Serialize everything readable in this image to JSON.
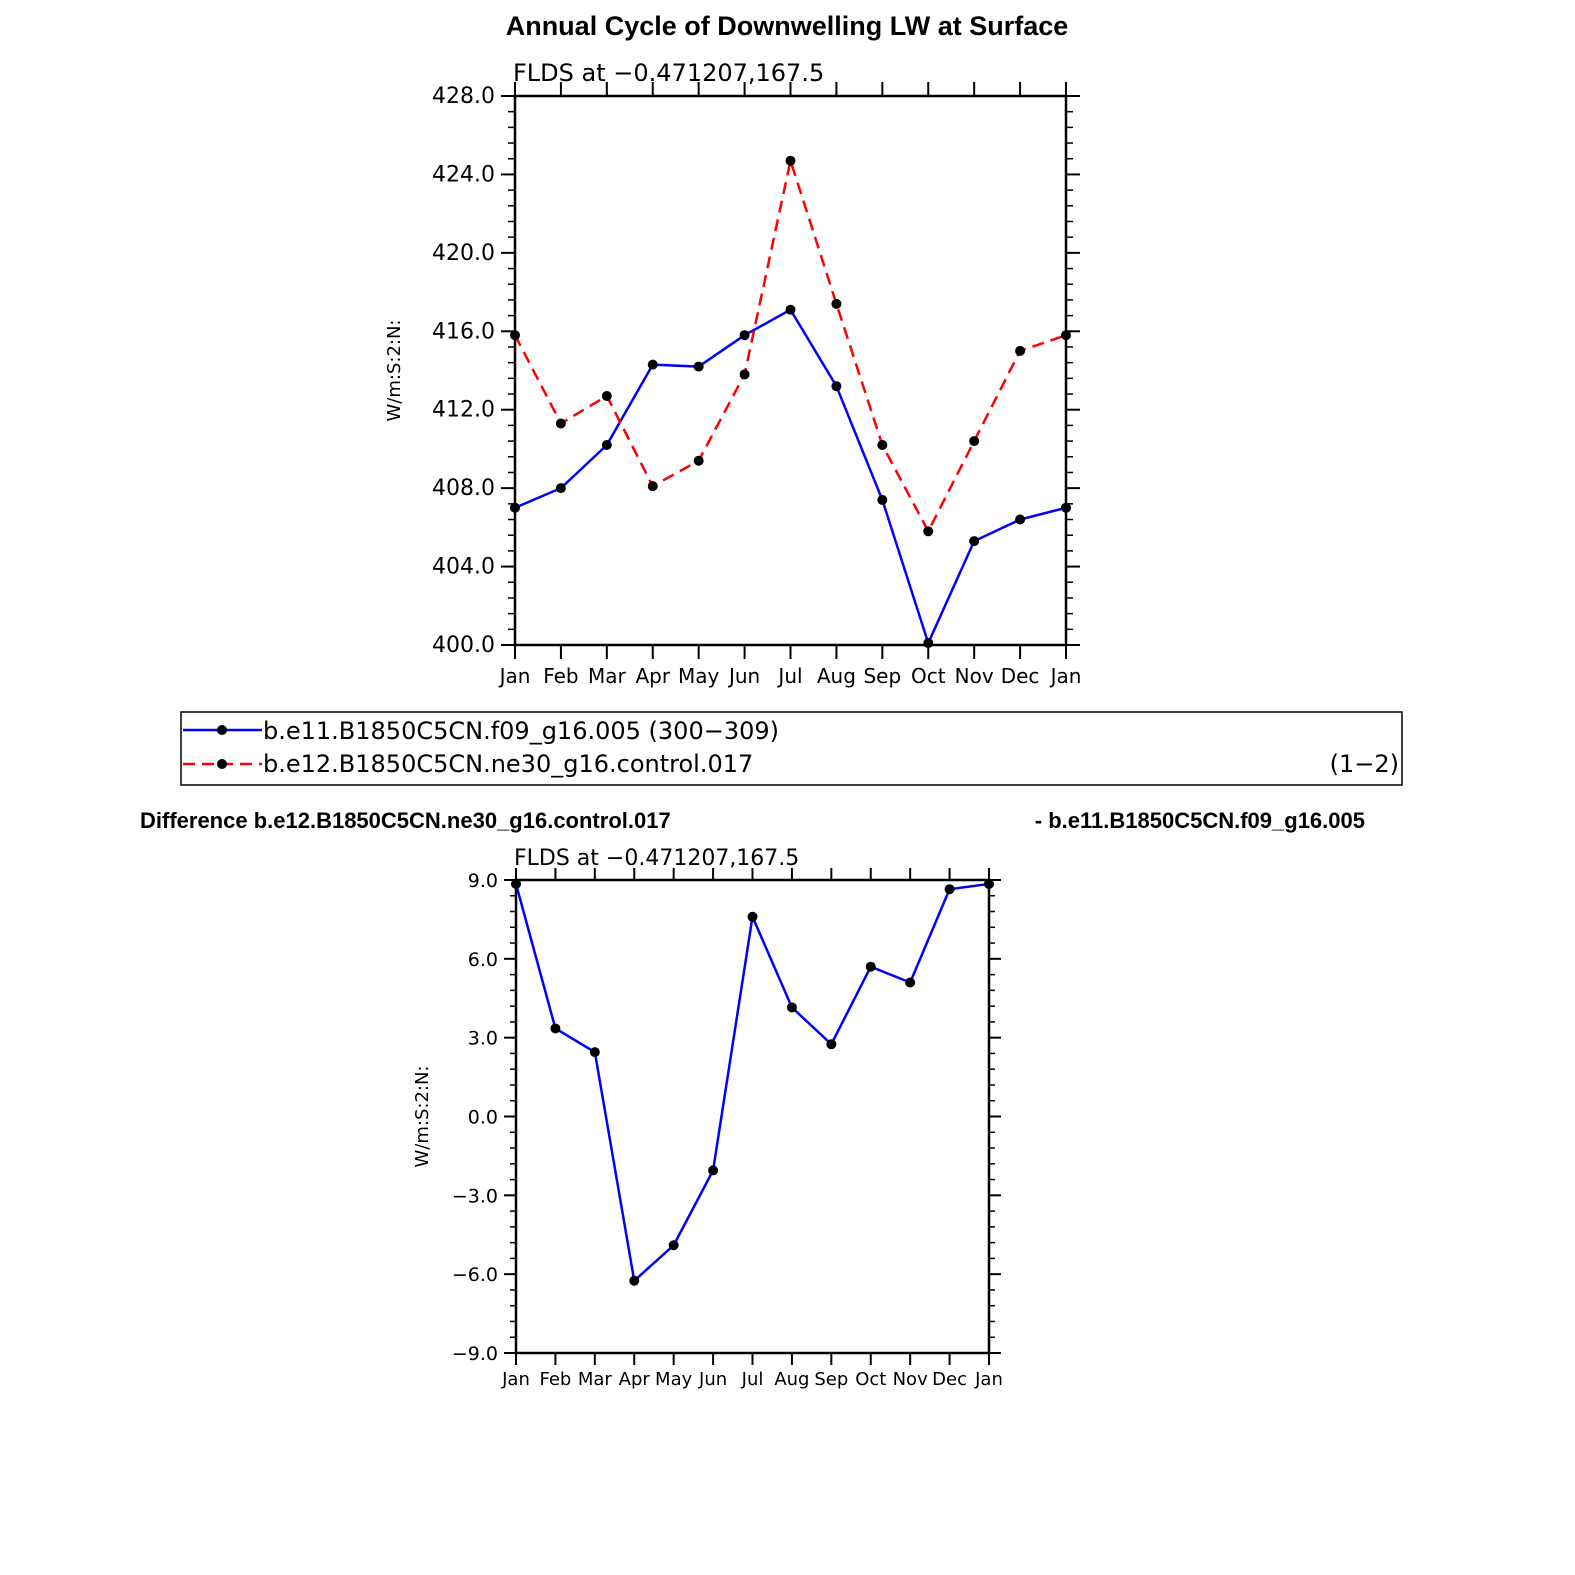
{
  "figure": {
    "title": "Annual Cycle of Downwelling LW at Surface",
    "difference_title_left": "Difference b.e12.B1850C5CN.ne30_g16.control.017",
    "difference_title_right": "- b.e11.B1850C5CN.f09_g16.005"
  },
  "legend": {
    "entries": [
      {
        "label": "b.e11.B1850C5CN.f09_g16.005 (300−309)",
        "color": "#0000ff",
        "dashed": false
      },
      {
        "label": "b.e12.B1850C5CN.ne30_g16.control.017",
        "color": "#ff0000",
        "dashed": true
      }
    ],
    "range_note": "(1−2)"
  },
  "chart_data": [
    {
      "type": "line",
      "title": "FLDS at −0.471207,167.5",
      "ylabel": "W/m:S:2:N:",
      "xlabel": "",
      "categories": [
        "Jan",
        "Feb",
        "Mar",
        "Apr",
        "May",
        "Jun",
        "Jul",
        "Aug",
        "Sep",
        "Oct",
        "Nov",
        "Dec",
        "Jan"
      ],
      "ylim": [
        400,
        428
      ],
      "yticks": [
        400,
        404,
        408,
        412,
        416,
        420,
        424,
        428
      ],
      "ytick_labels": [
        "400.0",
        "404.0",
        "408.0",
        "412.0",
        "416.0",
        "420.0",
        "424.0",
        "428.0"
      ],
      "grid": false,
      "series": [
        {
          "name": "b.e11.B1850C5CN.f09_g16.005 (300−309)",
          "color": "#0000ff",
          "dashed": false,
          "values": [
            407.0,
            408.0,
            410.2,
            414.3,
            414.2,
            415.8,
            417.1,
            413.2,
            407.4,
            400.1,
            405.3,
            406.4,
            407.0
          ]
        },
        {
          "name": "b.e12.B1850C5CN.ne30_g16.control.017",
          "color": "#ff0000",
          "dashed": true,
          "values": [
            415.8,
            411.3,
            412.7,
            408.1,
            409.4,
            413.8,
            424.7,
            417.4,
            410.2,
            405.8,
            410.4,
            415.0,
            415.8
          ]
        }
      ]
    },
    {
      "type": "line",
      "title": "FLDS at −0.471207,167.5",
      "ylabel": "W/m:S:2:N:",
      "xlabel": "",
      "categories": [
        "Jan",
        "Feb",
        "Mar",
        "Apr",
        "May",
        "Jun",
        "Jul",
        "Aug",
        "Sep",
        "Oct",
        "Nov",
        "Dec",
        "Jan"
      ],
      "ylim": [
        -9,
        9
      ],
      "yticks": [
        -9,
        -6,
        -3,
        0,
        3,
        6,
        9
      ],
      "ytick_labels": [
        "−9.0",
        "−6.0",
        "−3.0",
        "0.0",
        "3.0",
        "6.0",
        "9.0"
      ],
      "grid": false,
      "series": [
        {
          "color": "#0000ff",
          "dashed": false,
          "values": [
            8.85,
            3.35,
            2.45,
            -6.25,
            -4.9,
            -2.05,
            7.6,
            4.15,
            2.75,
            5.7,
            5.1,
            8.65,
            8.85
          ]
        }
      ]
    }
  ]
}
